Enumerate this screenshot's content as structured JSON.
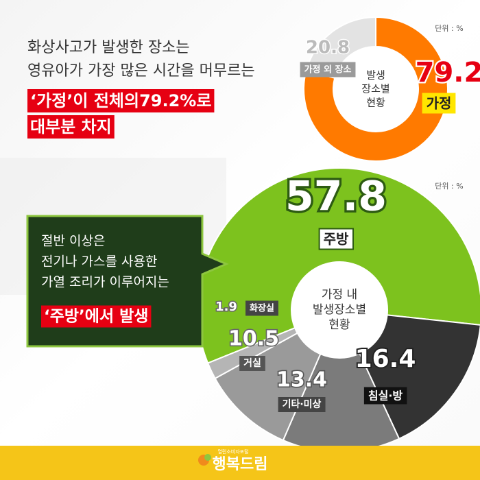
{
  "headline": [
    "화상사고가 발생한 장소는",
    "영유아가 가장 많은 시간을 머무르는",
    "‘가정’이 전체의79.2%로",
    "대부분 차지"
  ],
  "callout": [
    "절반 이상은",
    "전기나 가스를 사용한",
    "가열 조리가 이루어지는",
    "‘주방’에서 발생"
  ],
  "logo": {
    "name": "행복드림",
    "tagline": "열린소비자포털"
  },
  "chart_data": [
    {
      "type": "donut",
      "unit": "단위 : %",
      "center_label": [
        "발생",
        "장소별",
        "현황"
      ],
      "categories": [
        "가정",
        "가정 외 장소"
      ],
      "values": [
        79.2,
        20.8
      ],
      "colors": [
        "#ff7a00",
        "#e3e3e3"
      ]
    },
    {
      "type": "donut",
      "unit": "단위 : %",
      "center_label": [
        "가정 내",
        "발생장소별",
        "현황"
      ],
      "categories": [
        "주방",
        "침실·방",
        "기타·미상",
        "거실",
        "화장실"
      ],
      "values": [
        57.8,
        16.4,
        13.4,
        10.5,
        1.9
      ],
      "colors": [
        "#7dc21e",
        "#333333",
        "#7b7b7b",
        "#9a9a9a",
        "#b5b5b5"
      ]
    }
  ]
}
